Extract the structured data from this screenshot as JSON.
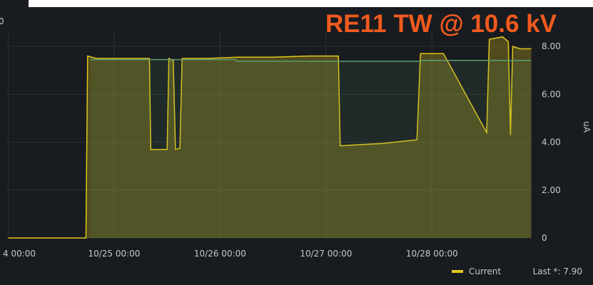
{
  "header_fragment": "0",
  "chart_data": {
    "type": "line",
    "title": "RE11 TW @ 10.6 kV",
    "y_axis_label": "uA",
    "xlim": [
      "10/24 00:00",
      "10/28 22:35"
    ],
    "xticks": [
      {
        "value": "10/24 00:00",
        "label": "4 00:00"
      },
      "10/25 00:00",
      "10/26 00:00",
      "10/27 00:00",
      "10/28 00:00"
    ],
    "ylim": [
      0,
      8.6
    ],
    "yticks": [
      0,
      {
        "value": 2,
        "label": "2.00"
      },
      {
        "value": 4,
        "label": "4.00"
      },
      {
        "value": 6,
        "label": "6.00"
      },
      {
        "value": 8,
        "label": "8.00"
      }
    ],
    "grid": true,
    "legend": "bottom-right",
    "legend_stat": "Last *: 7.90",
    "series": [
      {
        "name": "Current",
        "color": "#e3c71d",
        "x": [
          "10/24 00:00",
          "10/24 17:36",
          "10/24 18:00",
          "10/24 20:00",
          "10/25 02:00",
          "10/25 08:00",
          "10/25 08:18",
          "10/25 12:00",
          "10/25 12:24",
          "10/25 13:24",
          "10/25 13:54",
          "10/25 14:54",
          "10/25 15:24",
          "10/25 21:00",
          "10/26 04:00",
          "10/26 12:00",
          "10/26 20:00",
          "10/27 02:48",
          "10/27 03:12",
          "10/27 08:00",
          "10/27 13:00",
          "10/27 18:00",
          "10/27 20:36",
          "10/27 21:24",
          "10/28 02:36",
          "10/28 12:24",
          "10/28 13:00",
          "10/28 16:00",
          "10/28 17:18",
          "10/28 17:48",
          "10/28 18:18",
          "10/28 20:00",
          "10/28 22:30"
        ],
        "values": [
          0,
          0,
          7.6,
          7.5,
          7.5,
          7.5,
          3.7,
          3.7,
          7.5,
          7.4,
          3.7,
          3.75,
          7.5,
          7.5,
          7.55,
          7.55,
          7.6,
          7.6,
          3.85,
          3.9,
          3.95,
          4.05,
          4.1,
          7.7,
          7.7,
          4.4,
          8.3,
          8.4,
          8.2,
          4.3,
          8.0,
          7.9,
          7.9
        ]
      },
      {
        "color": "#5c9e6e",
        "x": [
          "10/24 18:36",
          "10/26 03:30",
          "10/26 03:48",
          "10/27 21:24",
          "10/27 21:36",
          "10/28 22:30"
        ],
        "values": [
          7.45,
          7.45,
          7.38,
          7.38,
          7.42,
          7.42
        ]
      }
    ]
  }
}
